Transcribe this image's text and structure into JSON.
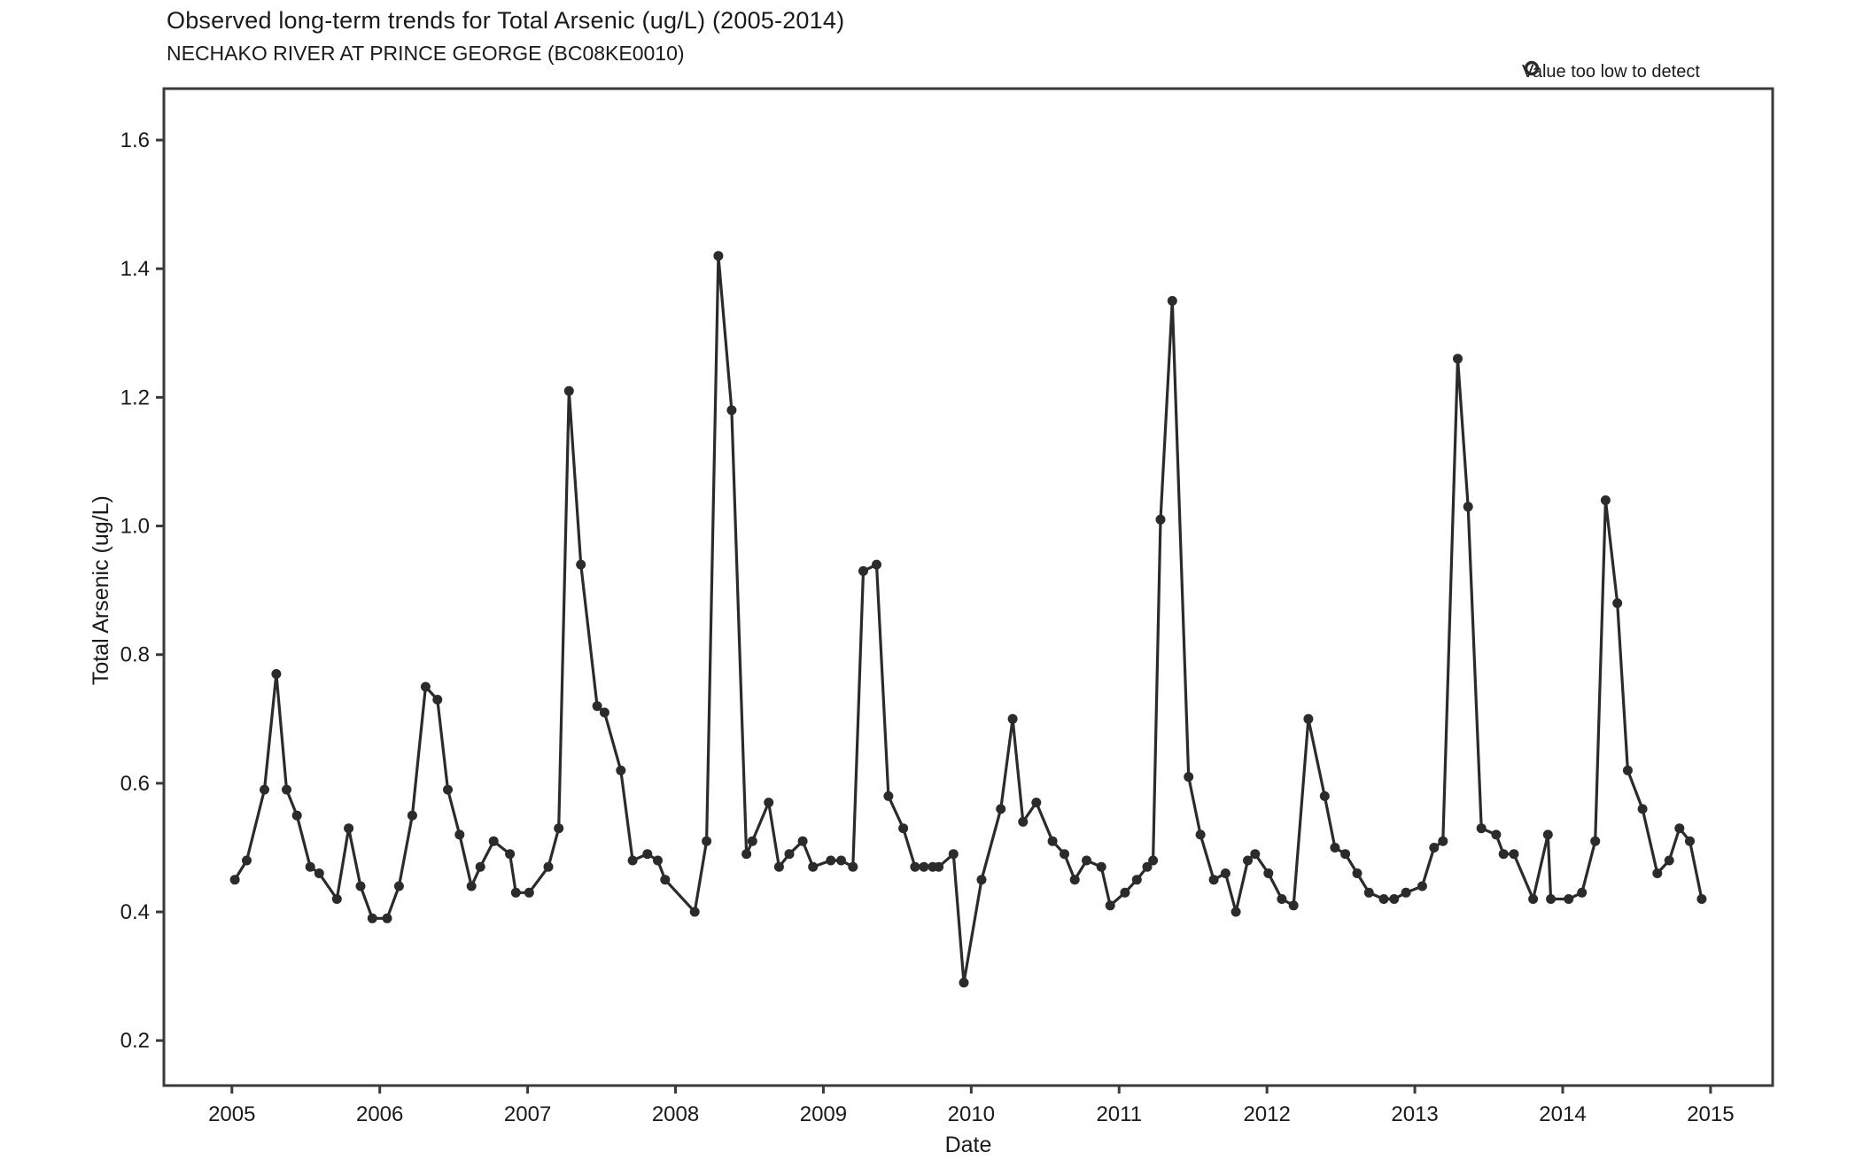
{
  "header": {
    "title": "Observed long-term trends for Total Arsenic (ug/L) (2005-2014)",
    "subtitle": "NECHAKO RIVER AT PRINCE GEORGE (BC08KE0010)"
  },
  "legend": {
    "items": [
      {
        "label": "Value too low to detect",
        "marker": "open-circle-icon"
      }
    ]
  },
  "colors": {
    "line": "#2b2b2b",
    "marker": "#2b2b2b",
    "axis": "#3a3a3a",
    "text": "#1a1a1a",
    "background": "#ffffff"
  },
  "chart_data": {
    "type": "line",
    "title": "Observed long-term trends for Total Arsenic (ug/L) (2005-2014)",
    "subtitle": "NECHAKO RIVER AT PRINCE GEORGE (BC08KE0010)",
    "xlabel": "Date",
    "ylabel": "Total Arsenic (ug/L)",
    "grid": false,
    "legend_position": "top-right",
    "marker_style": "filled-circle",
    "line_width": 3.2,
    "marker_radius": 5.5,
    "x_ticks": [
      2005,
      2006,
      2007,
      2008,
      2009,
      2010,
      2011,
      2012,
      2013,
      2014,
      2015
    ],
    "y_ticks": [
      0.2,
      0.4,
      0.6,
      0.8,
      1.0,
      1.2,
      1.4,
      1.6
    ],
    "xlim": [
      2004.54,
      2015.42
    ],
    "ylim": [
      0.13,
      1.68
    ],
    "series": [
      {
        "name": "Total Arsenic (ug/L)",
        "points": [
          [
            2005.02,
            0.45
          ],
          [
            2005.1,
            0.48
          ],
          [
            2005.22,
            0.59
          ],
          [
            2005.3,
            0.77
          ],
          [
            2005.37,
            0.59
          ],
          [
            2005.44,
            0.55
          ],
          [
            2005.53,
            0.47
          ],
          [
            2005.59,
            0.46
          ],
          [
            2005.71,
            0.42
          ],
          [
            2005.79,
            0.53
          ],
          [
            2005.87,
            0.44
          ],
          [
            2005.95,
            0.39
          ],
          [
            2006.05,
            0.39
          ],
          [
            2006.13,
            0.44
          ],
          [
            2006.22,
            0.55
          ],
          [
            2006.31,
            0.75
          ],
          [
            2006.39,
            0.73
          ],
          [
            2006.46,
            0.59
          ],
          [
            2006.54,
            0.52
          ],
          [
            2006.62,
            0.44
          ],
          [
            2006.68,
            0.47
          ],
          [
            2006.77,
            0.51
          ],
          [
            2006.88,
            0.49
          ],
          [
            2006.92,
            0.43
          ],
          [
            2007.01,
            0.43
          ],
          [
            2007.14,
            0.47
          ],
          [
            2007.21,
            0.53
          ],
          [
            2007.28,
            1.21
          ],
          [
            2007.36,
            0.94
          ],
          [
            2007.47,
            0.72
          ],
          [
            2007.52,
            0.71
          ],
          [
            2007.63,
            0.62
          ],
          [
            2007.71,
            0.48
          ],
          [
            2007.81,
            0.49
          ],
          [
            2007.88,
            0.48
          ],
          [
            2007.93,
            0.45
          ],
          [
            2008.13,
            0.4
          ],
          [
            2008.21,
            0.51
          ],
          [
            2008.29,
            1.42
          ],
          [
            2008.38,
            1.18
          ],
          [
            2008.48,
            0.49
          ],
          [
            2008.52,
            0.51
          ],
          [
            2008.63,
            0.57
          ],
          [
            2008.7,
            0.47
          ],
          [
            2008.77,
            0.49
          ],
          [
            2008.86,
            0.51
          ],
          [
            2008.93,
            0.47
          ],
          [
            2009.05,
            0.48
          ],
          [
            2009.12,
            0.48
          ],
          [
            2009.2,
            0.47
          ],
          [
            2009.27,
            0.93
          ],
          [
            2009.36,
            0.94
          ],
          [
            2009.44,
            0.58
          ],
          [
            2009.54,
            0.53
          ],
          [
            2009.62,
            0.47
          ],
          [
            2009.68,
            0.47
          ],
          [
            2009.74,
            0.47
          ],
          [
            2009.78,
            0.47
          ],
          [
            2009.88,
            0.49
          ],
          [
            2009.95,
            0.29
          ],
          [
            2010.07,
            0.45
          ],
          [
            2010.2,
            0.56
          ],
          [
            2010.28,
            0.7
          ],
          [
            2010.35,
            0.54
          ],
          [
            2010.44,
            0.57
          ],
          [
            2010.55,
            0.51
          ],
          [
            2010.63,
            0.49
          ],
          [
            2010.7,
            0.45
          ],
          [
            2010.78,
            0.48
          ],
          [
            2010.88,
            0.47
          ],
          [
            2010.94,
            0.41
          ],
          [
            2011.04,
            0.43
          ],
          [
            2011.12,
            0.45
          ],
          [
            2011.19,
            0.47
          ],
          [
            2011.23,
            0.48
          ],
          [
            2011.28,
            1.01
          ],
          [
            2011.36,
            1.35
          ],
          [
            2011.47,
            0.61
          ],
          [
            2011.55,
            0.52
          ],
          [
            2011.64,
            0.45
          ],
          [
            2011.72,
            0.46
          ],
          [
            2011.79,
            0.4
          ],
          [
            2011.87,
            0.48
          ],
          [
            2011.92,
            0.49
          ],
          [
            2012.01,
            0.46
          ],
          [
            2012.1,
            0.42
          ],
          [
            2012.18,
            0.41
          ],
          [
            2012.28,
            0.7
          ],
          [
            2012.39,
            0.58
          ],
          [
            2012.46,
            0.5
          ],
          [
            2012.53,
            0.49
          ],
          [
            2012.61,
            0.46
          ],
          [
            2012.69,
            0.43
          ],
          [
            2012.79,
            0.42
          ],
          [
            2012.86,
            0.42
          ],
          [
            2012.94,
            0.43
          ],
          [
            2013.05,
            0.44
          ],
          [
            2013.13,
            0.5
          ],
          [
            2013.19,
            0.51
          ],
          [
            2013.29,
            1.26
          ],
          [
            2013.36,
            1.03
          ],
          [
            2013.45,
            0.53
          ],
          [
            2013.55,
            0.52
          ],
          [
            2013.6,
            0.49
          ],
          [
            2013.67,
            0.49
          ],
          [
            2013.8,
            0.42
          ],
          [
            2013.9,
            0.52
          ],
          [
            2013.92,
            0.42
          ],
          [
            2014.04,
            0.42
          ],
          [
            2014.13,
            0.43
          ],
          [
            2014.22,
            0.51
          ],
          [
            2014.29,
            1.04
          ],
          [
            2014.37,
            0.88
          ],
          [
            2014.44,
            0.62
          ],
          [
            2014.54,
            0.56
          ],
          [
            2014.64,
            0.46
          ],
          [
            2014.72,
            0.48
          ],
          [
            2014.79,
            0.53
          ],
          [
            2014.86,
            0.51
          ],
          [
            2014.94,
            0.42
          ]
        ]
      }
    ]
  }
}
